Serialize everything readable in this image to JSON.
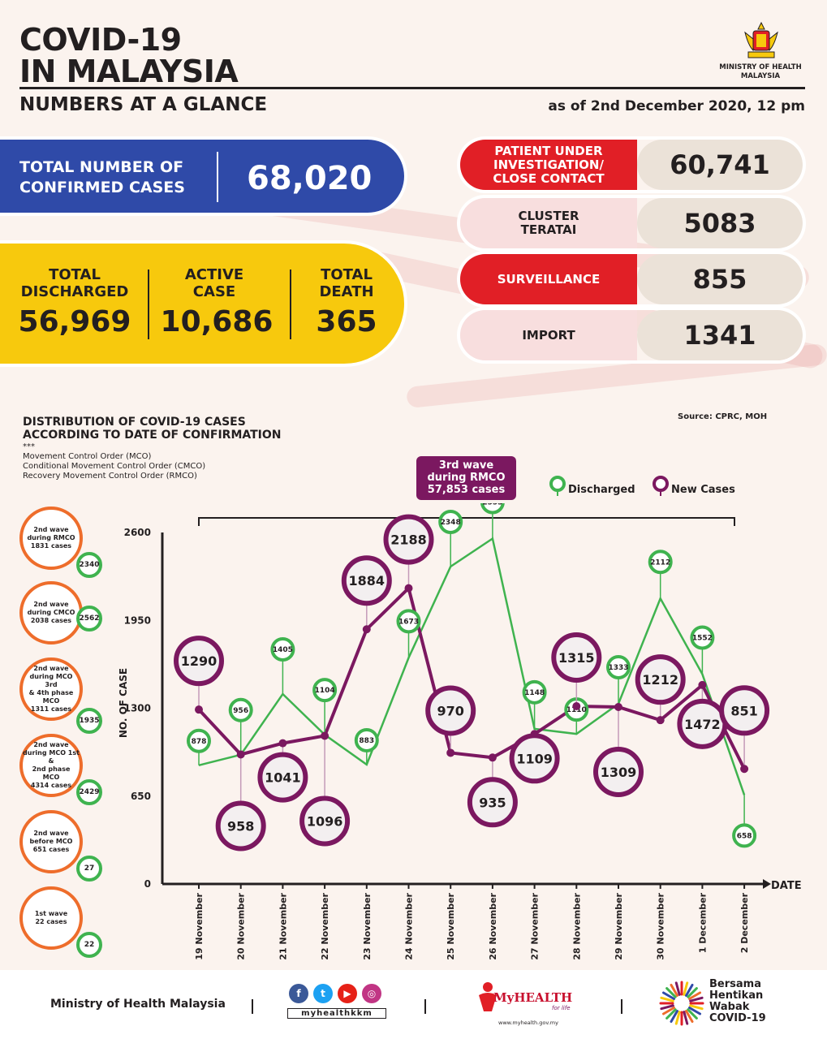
{
  "header": {
    "title_line1": "COVID-19",
    "title_line2": "IN MALAYSIA",
    "subtitle": "NUMBERS AT A GLANCE",
    "as_of": "as of 2nd December 2020, 12 pm",
    "ministry_label_line1": "MINISTRY OF HEALTH",
    "ministry_label_line2": "MALAYSIA"
  },
  "totals": {
    "confirmed_label_line1": "TOTAL NUMBER OF",
    "confirmed_label_line2": "CONFIRMED CASES",
    "confirmed_value": "68,020",
    "discharged_label_line1": "TOTAL",
    "discharged_label_line2": "DISCHARGED",
    "discharged_value": "56,969",
    "active_label_line1": "ACTIVE",
    "active_label_line2": "CASE",
    "active_value": "10,686",
    "death_label_line1": "TOTAL",
    "death_label_line2": "DEATH",
    "death_value": "365"
  },
  "categories": [
    {
      "label_line1": "PATIENT UNDER",
      "label_line2": "INVESTIGATION/",
      "label_line3": "CLOSE CONTACT",
      "value": "60,741",
      "style": "red"
    },
    {
      "label_line1": "CLUSTER",
      "label_line2": "TERATAI",
      "label_line3": "",
      "value": "5083",
      "style": "pink"
    },
    {
      "label_line1": "SURVEILLANCE",
      "label_line2": "",
      "label_line3": "",
      "value": "855",
      "style": "red"
    },
    {
      "label_line1": "IMPORT",
      "label_line2": "",
      "label_line3": "",
      "value": "1341",
      "style": "pink"
    }
  ],
  "distribution": {
    "title_line1": "DISTRIBUTION OF COVID-19 CASES",
    "title_line2": "ACCORDING TO DATE OF CONFIRMATION",
    "note_marker": "***",
    "note_line1": "Movement Control Order (MCO)",
    "note_line2": "Conditional Movement Control Order (CMCO)",
    "note_line3": "Recovery Movement Control Order (RMCO)",
    "source": "Source: CPRC, MOH",
    "wave3_line1": "3rd wave",
    "wave3_line2": "during RMCO",
    "wave3_line3": "57,853 cases"
  },
  "waves": [
    {
      "line1": "2nd wave",
      "line2": "during RMCO",
      "line3": "1831 cases",
      "bubble": "2340"
    },
    {
      "line1": "2nd wave",
      "line2": "during CMCO",
      "line3": "2038 cases",
      "bubble": "2562"
    },
    {
      "line1": "2nd wave",
      "line2": "during MCO 3rd",
      "line3": "& 4th phase MCO",
      "line4": "1311 cases",
      "bubble": "1935"
    },
    {
      "line1": "2nd wave",
      "line2": "during MCO 1st &",
      "line3": "2nd phase MCO",
      "line4": "4314 cases",
      "bubble": "2429"
    },
    {
      "line1": "2nd wave",
      "line2": "before MCO",
      "line3": "651 cases",
      "bubble": "27"
    },
    {
      "line1": "1st wave",
      "line2": "22 cases",
      "bubble": "22"
    }
  ],
  "chart_data": {
    "type": "line",
    "categories": [
      "19 November",
      "20 November",
      "21 November",
      "22 November",
      "23 November",
      "24 November",
      "25 November",
      "26 November",
      "27 November",
      "28 November",
      "29 November",
      "30 November",
      "1 December",
      "2 December"
    ],
    "series": [
      {
        "name": "Discharged",
        "color": "#3fb34f",
        "values": [
          878,
          956,
          1405,
          1104,
          883,
          1673,
          2348,
          2555,
          1148,
          1110,
          1333,
          2112,
          1552,
          658
        ]
      },
      {
        "name": "New Cases",
        "color": "#7b1860",
        "values": [
          1290,
          958,
          1041,
          1096,
          1884,
          2188,
          970,
          935,
          1109,
          1315,
          1309,
          1212,
          1472,
          851
        ]
      }
    ],
    "ylabel": "NO. OF CASE",
    "xlabel": "DATE",
    "yticks": [
      0,
      650,
      1300,
      1950,
      2600
    ],
    "ylim": [
      0,
      2600
    ]
  },
  "footer": {
    "ministry": "Ministry of Health Malaysia",
    "handle": "myhealthkkm",
    "myhealth": "MyHEALTH",
    "myhealth_tag": "for life",
    "myhealth_url": "www.myhealth.gov.my",
    "bersama_line1": "Bersama",
    "bersama_line2": "Hentikan",
    "bersama_line3": "Wabak",
    "bersama_line4": "COVID-19"
  },
  "colors": {
    "blue": "#2f4aa8",
    "yellow": "#f7c90d",
    "red": "#e11f26",
    "pink": "#f8dede",
    "green": "#3fb34f",
    "purple": "#7b1860",
    "orange": "#ee6d2b"
  }
}
